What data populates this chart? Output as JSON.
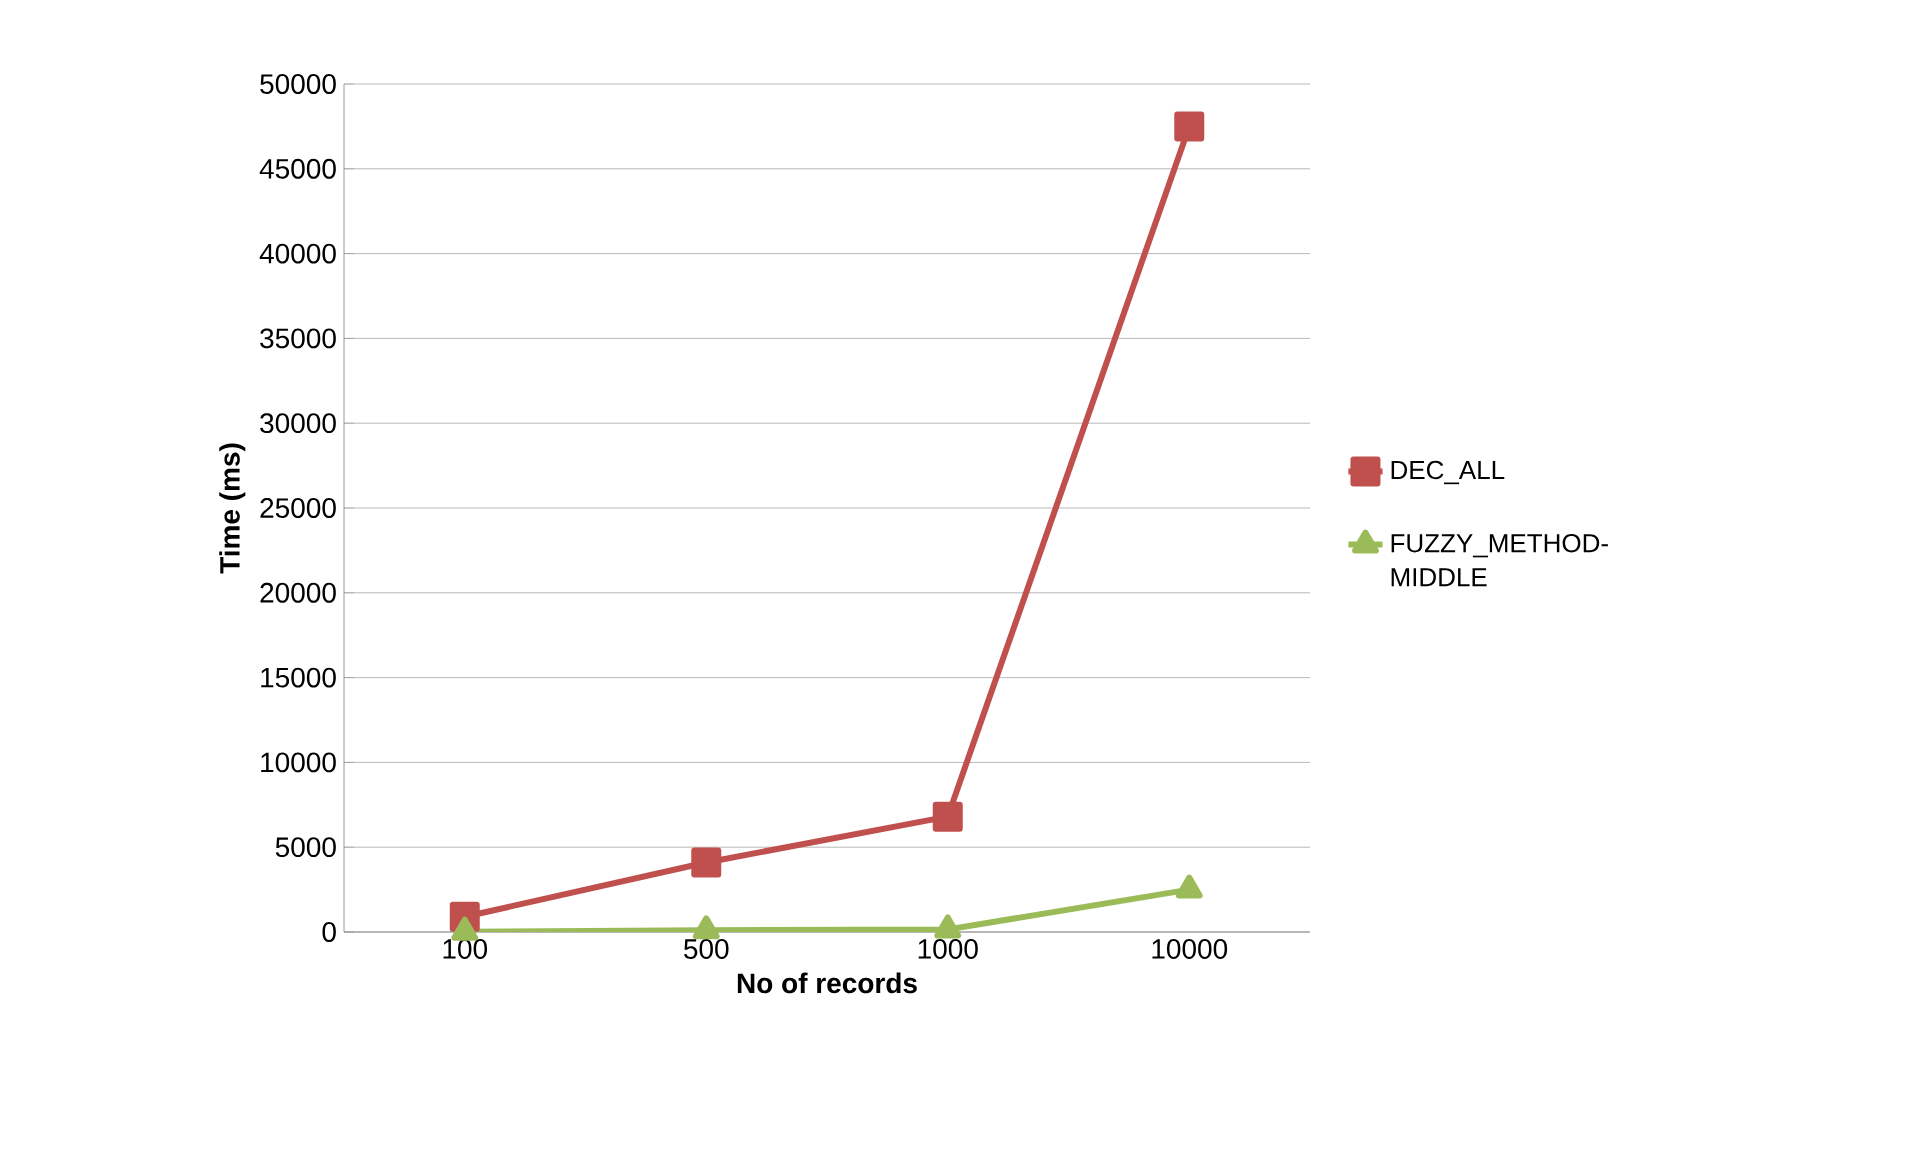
{
  "chart_data": {
    "type": "line",
    "xlabel": "No of records",
    "ylabel": "Time (ms)",
    "categories": [
      "100",
      "500",
      "1000",
      "10000"
    ],
    "series": [
      {
        "name": "DEC_ALL",
        "color": "#c0504d",
        "marker": "square",
        "values": [
          900,
          4100,
          6800,
          47500
        ]
      },
      {
        "name": "FUZZY_METHOD-MIDDLE",
        "color": "#9bbb59",
        "marker": "triangle",
        "values": [
          20,
          100,
          150,
          2500
        ]
      }
    ],
    "ylim": [
      0,
      50000
    ],
    "yticks": [
      0,
      5000,
      10000,
      15000,
      20000,
      25000,
      30000,
      35000,
      40000,
      45000,
      50000
    ],
    "grid": "y",
    "legend": "right"
  }
}
